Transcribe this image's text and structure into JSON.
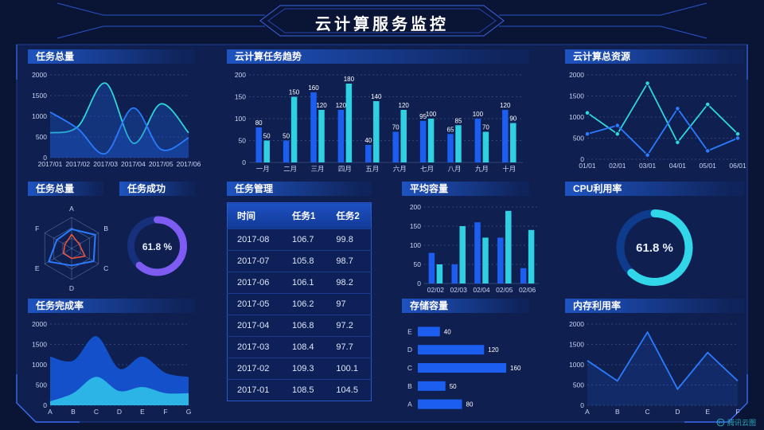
{
  "header": {
    "title": "云计算服务监控",
    "watermark": "腾讯云图"
  },
  "panels": {
    "task_total_line": {
      "title": "任务总量"
    },
    "cloud_task_trend": {
      "title": "云计算任务趋势"
    },
    "cloud_resources": {
      "title": "云计算总资源"
    },
    "task_total_radar": {
      "title": "任务总量"
    },
    "task_success": {
      "title": "任务成功",
      "value": "61.8 %"
    },
    "task_management": {
      "title": "任务管理",
      "columns": [
        "时间",
        "任务1",
        "任务2"
      ],
      "rows": [
        [
          "2017-08",
          "106.7",
          "99.8"
        ],
        [
          "2017-07",
          "105.8",
          "98.7"
        ],
        [
          "2017-06",
          "106.1",
          "98.2"
        ],
        [
          "2017-05",
          "106.2",
          "97"
        ],
        [
          "2017-04",
          "106.8",
          "97.2"
        ],
        [
          "2017-03",
          "108.4",
          "97.7"
        ],
        [
          "2017-02",
          "109.3",
          "100.1"
        ],
        [
          "2017-01",
          "108.5",
          "104.5"
        ]
      ]
    },
    "avg_capacity": {
      "title": "平均容量"
    },
    "cpu_usage": {
      "title": "CPU利用率",
      "value": "61.8 %"
    },
    "task_completion": {
      "title": "任务完成率"
    },
    "storage": {
      "title": "存储容量"
    },
    "memory": {
      "title": "内存利用率"
    }
  },
  "colors": {
    "background": "#0a1435",
    "panel_fill": "#0e1f50",
    "accent_blue": "#2b7bff",
    "bar_blue": "#1b5ef0",
    "bar_cyan": "#2ed0e2",
    "purple": "#7e5bf2",
    "donut_cyan": "#31d6e8",
    "red": "#f4533a",
    "frame_line": "#2a55cc"
  },
  "chart_data": [
    {
      "id": "task-total-line",
      "type": "line",
      "smooth": true,
      "markers": false,
      "title": "任务总量",
      "categories": [
        "2017/01",
        "2017/02",
        "2017/03",
        "2017/04",
        "2017/05",
        "2017/06"
      ],
      "series": [
        {
          "name": "cyan",
          "color": "#2fd6db",
          "fill": "rgba(30,92,216,0.32)",
          "values": [
            600,
            750,
            1800,
            350,
            1300,
            600
          ]
        },
        {
          "name": "blue",
          "color": "#2b7bff",
          "fill": "rgba(30,92,216,0.32)",
          "values": [
            1100,
            700,
            100,
            1200,
            200,
            480
          ]
        }
      ],
      "ylim": [
        0,
        2000
      ],
      "yticks": [
        0,
        500,
        1000,
        1500,
        2000
      ]
    },
    {
      "id": "cloud-task-trend",
      "type": "bar",
      "value_labels": true,
      "solid_base": true,
      "title": "云计算任务趋势",
      "categories": [
        "一月",
        "二月",
        "三月",
        "四月",
        "五月",
        "六月",
        "七月",
        "八月",
        "九月",
        "十月"
      ],
      "series": [
        {
          "name": "blue",
          "color": "#1b5ef0",
          "values": [
            80,
            50,
            160,
            120,
            40,
            70,
            95,
            65,
            100,
            120
          ]
        },
        {
          "name": "cyan",
          "color": "#2ed0e2",
          "values": [
            50,
            150,
            120,
            180,
            140,
            120,
            100,
            85,
            70,
            90
          ]
        }
      ],
      "ylim": [
        0,
        200
      ],
      "yticks": [
        0,
        50,
        100,
        150,
        200
      ]
    },
    {
      "id": "cloud-resources",
      "type": "line",
      "smooth": false,
      "markers": true,
      "title": "云计算总资源",
      "categories": [
        "01/01",
        "02/01",
        "03/01",
        "04/01",
        "05/01",
        "06/01"
      ],
      "series": [
        {
          "name": "cyan",
          "color": "#2fd6db",
          "values": [
            1100,
            600,
            1800,
            400,
            1300,
            600
          ]
        },
        {
          "name": "blue",
          "color": "#2b7bff",
          "values": [
            600,
            800,
            100,
            1200,
            200,
            500
          ]
        }
      ],
      "ylim": [
        0,
        2000
      ],
      "yticks": [
        0,
        500,
        1000,
        1500,
        2000
      ]
    },
    {
      "id": "task-radar",
      "type": "radar",
      "title": "任务总量",
      "axes": [
        "A",
        "B",
        "C",
        "D",
        "E",
        "F"
      ],
      "max": 100,
      "series": [
        {
          "name": "blue",
          "color": "#2b7bff",
          "width": 2,
          "values": [
            62,
            88,
            82,
            55,
            85,
            55
          ]
        },
        {
          "name": "red",
          "color": "#f4533a",
          "width": 1.5,
          "values": [
            45,
            28,
            50,
            32,
            30,
            25
          ]
        }
      ]
    },
    {
      "id": "task-success-donut",
      "type": "donut",
      "title": "任务成功",
      "value": 61.8,
      "label": "61.8 %",
      "label_size": 12,
      "color": "#7e5bf2",
      "track": "#16307c",
      "r": 33,
      "width": 9
    },
    {
      "id": "avg-capacity",
      "type": "bar",
      "value_labels": false,
      "solid_base": true,
      "title": "平均容量",
      "categories": [
        "02/02",
        "02/03",
        "02/04",
        "02/05",
        "02/06"
      ],
      "series": [
        {
          "name": "blue",
          "color": "#1b5ef0",
          "values": [
            80,
            50,
            160,
            120,
            40
          ]
        },
        {
          "name": "cyan",
          "color": "#2ed0e2",
          "values": [
            50,
            150,
            120,
            190,
            140
          ]
        }
      ],
      "ylim": [
        0,
        200
      ],
      "yticks": [
        0,
        50,
        100,
        150,
        200
      ]
    },
    {
      "id": "cpu-usage-donut",
      "type": "donut",
      "title": "CPU利用率",
      "value": 61.8,
      "label": "61.8 %",
      "label_size": 15,
      "color": "#31d6e8",
      "track": "#0f3b8c",
      "r": 43,
      "width": 10
    },
    {
      "id": "task-completion",
      "type": "area",
      "title": "任务完成率",
      "categories": [
        "A",
        "B",
        "C",
        "D",
        "E",
        "F",
        "G"
      ],
      "series": [
        {
          "name": "blue",
          "color": "#2b7bff",
          "fill": "rgba(19,85,213,0.92)",
          "values": [
            1200,
            1100,
            1700,
            900,
            1200,
            800,
            700
          ]
        },
        {
          "name": "cyan",
          "color": "#35c8ec",
          "fill": "rgba(45,185,232,0.95)",
          "values": [
            100,
            300,
            700,
            350,
            450,
            300,
            300
          ]
        }
      ],
      "ylim": [
        0,
        2000
      ],
      "yticks": [
        0,
        500,
        1000,
        1500,
        2000
      ]
    },
    {
      "id": "storage-hbar",
      "type": "hbar",
      "title": "存储容量",
      "categories": [
        "E",
        "D",
        "C",
        "B",
        "A"
      ],
      "values": [
        40,
        120,
        160,
        50,
        80
      ],
      "xmax": 170,
      "color": "#1b5ef0"
    },
    {
      "id": "memory-line",
      "type": "line",
      "smooth": false,
      "markers": false,
      "title": "内存利用率",
      "categories": [
        "A",
        "B",
        "C",
        "D",
        "E",
        "F"
      ],
      "series": [
        {
          "name": "blue",
          "color": "#2b7bff",
          "fill": "rgba(43,123,255,0.14)",
          "values": [
            1100,
            600,
            1800,
            400,
            1300,
            600
          ]
        }
      ],
      "ylim": [
        0,
        2000
      ],
      "yticks": [
        0,
        500,
        1000,
        1500,
        2000
      ]
    }
  ]
}
